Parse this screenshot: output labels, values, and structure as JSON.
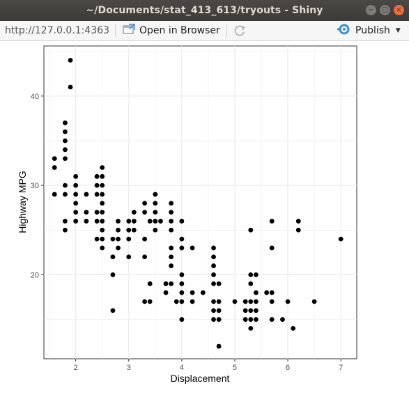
{
  "window": {
    "title": "~/Documents/stat_413_613/tryouts - Shiny",
    "min_glyph": "−",
    "max_glyph": "□",
    "close_glyph": "×"
  },
  "toolbar": {
    "url": "http://127.0.0.1:4363",
    "open_in_browser": "Open in Browser",
    "publish": "Publish"
  },
  "icons": {
    "open_in_browser": "external-window-icon",
    "refresh": "refresh-icon",
    "publish": "rstudio-connect-icon",
    "caret": "chevron-down-icon"
  },
  "colors": {
    "accent": "#3d8fd1",
    "point": "#000000",
    "grid": "#ebebeb",
    "panel_border": "#333333"
  },
  "chart_data": {
    "type": "scatter",
    "title": "",
    "xlabel": "Displacement",
    "ylabel": "Highway MPG",
    "xlim": [
      1.4,
      7.3
    ],
    "ylim": [
      10.6,
      45.6
    ],
    "xticks": [
      2,
      3,
      4,
      5,
      6,
      7
    ],
    "yticks": [
      20,
      30,
      40
    ],
    "grid": true,
    "legend": "none",
    "points": [
      [
        1.6,
        32
      ],
      [
        1.6,
        33
      ],
      [
        1.6,
        29
      ],
      [
        1.8,
        25
      ],
      [
        1.8,
        26
      ],
      [
        1.8,
        29
      ],
      [
        1.8,
        30
      ],
      [
        1.8,
        33
      ],
      [
        1.8,
        34
      ],
      [
        1.8,
        35
      ],
      [
        1.8,
        36
      ],
      [
        1.8,
        37
      ],
      [
        1.9,
        44
      ],
      [
        1.9,
        41
      ],
      [
        2.0,
        26
      ],
      [
        2.0,
        27
      ],
      [
        2.0,
        28
      ],
      [
        2.0,
        29
      ],
      [
        2.0,
        30
      ],
      [
        2.0,
        31
      ],
      [
        2.2,
        26
      ],
      [
        2.2,
        27
      ],
      [
        2.2,
        29
      ],
      [
        2.4,
        24
      ],
      [
        2.4,
        26
      ],
      [
        2.4,
        27
      ],
      [
        2.4,
        29
      ],
      [
        2.4,
        30
      ],
      [
        2.4,
        31
      ],
      [
        2.5,
        23
      ],
      [
        2.5,
        24
      ],
      [
        2.5,
        25
      ],
      [
        2.5,
        26
      ],
      [
        2.5,
        27
      ],
      [
        2.5,
        28
      ],
      [
        2.5,
        29
      ],
      [
        2.5,
        30
      ],
      [
        2.5,
        31
      ],
      [
        2.5,
        32
      ],
      [
        2.7,
        16
      ],
      [
        2.7,
        20
      ],
      [
        2.7,
        22
      ],
      [
        2.7,
        24
      ],
      [
        2.8,
        23
      ],
      [
        2.8,
        24
      ],
      [
        2.8,
        25
      ],
      [
        2.8,
        26
      ],
      [
        3.0,
        22
      ],
      [
        3.0,
        24
      ],
      [
        3.0,
        25
      ],
      [
        3.0,
        26
      ],
      [
        3.1,
        25
      ],
      [
        3.1,
        26
      ],
      [
        3.1,
        27
      ],
      [
        3.3,
        17
      ],
      [
        3.3,
        22
      ],
      [
        3.3,
        24
      ],
      [
        3.3,
        27
      ],
      [
        3.3,
        28
      ],
      [
        3.4,
        17
      ],
      [
        3.4,
        19
      ],
      [
        3.4,
        26
      ],
      [
        3.5,
        25
      ],
      [
        3.5,
        26
      ],
      [
        3.5,
        27
      ],
      [
        3.5,
        28
      ],
      [
        3.5,
        29
      ],
      [
        3.6,
        26
      ],
      [
        3.7,
        18
      ],
      [
        3.7,
        19
      ],
      [
        3.8,
        19
      ],
      [
        3.8,
        21
      ],
      [
        3.8,
        22
      ],
      [
        3.8,
        23
      ],
      [
        3.8,
        25
      ],
      [
        3.8,
        26
      ],
      [
        3.8,
        27
      ],
      [
        3.8,
        28
      ],
      [
        3.9,
        17
      ],
      [
        4.0,
        15
      ],
      [
        4.0,
        17
      ],
      [
        4.0,
        18
      ],
      [
        4.0,
        19
      ],
      [
        4.0,
        20
      ],
      [
        4.0,
        23
      ],
      [
        4.0,
        24
      ],
      [
        4.0,
        26
      ],
      [
        4.2,
        17
      ],
      [
        4.2,
        18
      ],
      [
        4.2,
        23
      ],
      [
        4.4,
        18
      ],
      [
        4.6,
        15
      ],
      [
        4.6,
        16
      ],
      [
        4.6,
        17
      ],
      [
        4.6,
        19
      ],
      [
        4.6,
        20
      ],
      [
        4.6,
        21
      ],
      [
        4.6,
        22
      ],
      [
        4.6,
        23
      ],
      [
        4.7,
        12
      ],
      [
        4.7,
        15
      ],
      [
        4.7,
        16
      ],
      [
        4.7,
        17
      ],
      [
        4.7,
        19
      ],
      [
        5.0,
        17
      ],
      [
        5.2,
        15
      ],
      [
        5.2,
        16
      ],
      [
        5.2,
        17
      ],
      [
        5.3,
        14
      ],
      [
        5.3,
        15
      ],
      [
        5.3,
        16
      ],
      [
        5.3,
        17
      ],
      [
        5.3,
        19
      ],
      [
        5.3,
        20
      ],
      [
        5.3,
        25
      ],
      [
        5.4,
        15
      ],
      [
        5.4,
        16
      ],
      [
        5.4,
        17
      ],
      [
        5.4,
        18
      ],
      [
        5.4,
        20
      ],
      [
        5.6,
        18
      ],
      [
        5.7,
        15
      ],
      [
        5.7,
        17
      ],
      [
        5.7,
        18
      ],
      [
        5.7,
        23
      ],
      [
        5.7,
        26
      ],
      [
        5.9,
        15
      ],
      [
        6.0,
        17
      ],
      [
        6.1,
        14
      ],
      [
        6.2,
        25
      ],
      [
        6.2,
        26
      ],
      [
        6.5,
        17
      ],
      [
        7.0,
        24
      ]
    ]
  }
}
